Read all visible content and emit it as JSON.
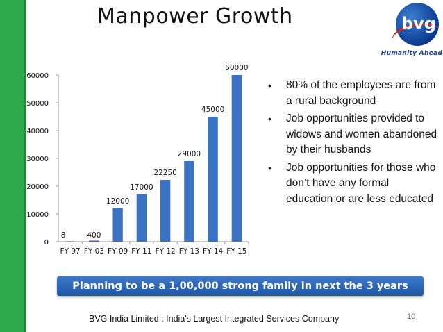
{
  "slide": {
    "title": "Manpower Growth",
    "banner": "Planning to be a 1,00,000 strong family in next the 3 years",
    "footer": "BVG India Limited : India's Largest Integrated Services Company",
    "page_number": "10",
    "logo_text": "bvg",
    "logo_tagline": "Humanity Ahead",
    "accent_color": "#2eaa4a",
    "bar_color": "#3a73c4"
  },
  "bullets": [
    "80% of the employees are from a rural background",
    "Job opportunities provided to widows and women abandoned by their husbands",
    "Job opportunities for those who don’t have any formal education or are less educated"
  ],
  "chart_data": {
    "type": "bar",
    "title": "",
    "xlabel": "",
    "ylabel": "",
    "categories": [
      "FY 97",
      "FY 03",
      "FY 09",
      "FY 11",
      "FY 12",
      "FY 13",
      "FY 14",
      "FY 15"
    ],
    "values": [
      8,
      400,
      12000,
      17000,
      22250,
      29000,
      45000,
      60000
    ],
    "data_labels": [
      "8",
      "400",
      "12000",
      "17000",
      "22250",
      "29000",
      "45000",
      "60000"
    ],
    "ylim": [
      0,
      60000
    ],
    "yticks": [
      0,
      10000,
      20000,
      30000,
      40000,
      50000,
      60000
    ],
    "grid": false,
    "legend": "none"
  }
}
